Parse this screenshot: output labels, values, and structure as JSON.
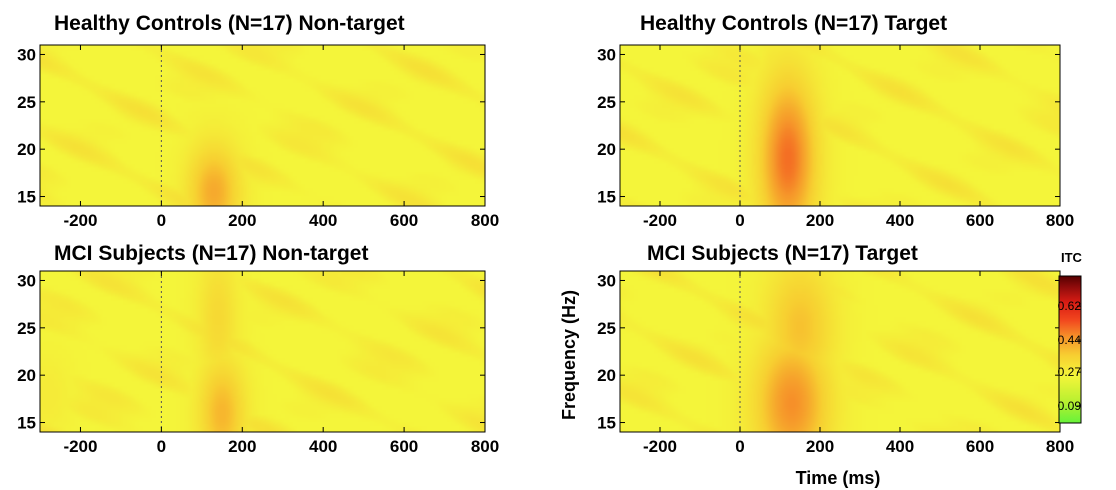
{
  "chart_data": [
    {
      "type": "heatmap",
      "title": "Healthy Controls (N=17) Non-target",
      "x_range": [
        -300,
        800
      ],
      "y_range": [
        14,
        31
      ],
      "x_ticks": [
        -200,
        0,
        200,
        400,
        600,
        800
      ],
      "y_ticks": [
        15,
        20,
        25,
        30
      ],
      "xlabel": "",
      "ylabel": "",
      "blobs": [
        {
          "time_ms": 130,
          "freq_hz": 15.5,
          "itc": 0.42,
          "sigma_ms": 45,
          "sigma_hz": 3.5
        },
        {
          "time_ms": 100,
          "freq_hz": 26,
          "itc": 0.22,
          "sigma_ms": 30,
          "sigma_hz": 2.5
        }
      ]
    },
    {
      "type": "heatmap",
      "title": "Healthy Controls (N=17) Target",
      "x_range": [
        -300,
        800
      ],
      "y_range": [
        14,
        31
      ],
      "x_ticks": [
        -200,
        0,
        200,
        400,
        600,
        800
      ],
      "y_ticks": [
        15,
        20,
        25,
        30
      ],
      "xlabel": "",
      "ylabel": "",
      "blobs": [
        {
          "time_ms": 120,
          "freq_hz": 19,
          "itc": 0.5,
          "sigma_ms": 50,
          "sigma_hz": 6
        },
        {
          "time_ms": 90,
          "freq_hz": 28,
          "itc": 0.3,
          "sigma_ms": 30,
          "sigma_hz": 3
        }
      ]
    },
    {
      "type": "heatmap",
      "title": "MCI Subjects (N=17) Non-target",
      "x_range": [
        -300,
        800
      ],
      "y_range": [
        14,
        31
      ],
      "x_ticks": [
        -200,
        0,
        200,
        400,
        600,
        800
      ],
      "y_ticks": [
        15,
        20,
        25,
        30
      ],
      "xlabel": "",
      "ylabel": "",
      "blobs": [
        {
          "time_ms": 150,
          "freq_hz": 16,
          "itc": 0.4,
          "sigma_ms": 40,
          "sigma_hz": 4
        },
        {
          "time_ms": 140,
          "freq_hz": 26,
          "itc": 0.33,
          "sigma_ms": 35,
          "sigma_hz": 5
        },
        {
          "time_ms": -280,
          "freq_hz": 18,
          "itc": 0.28,
          "sigma_ms": 40,
          "sigma_hz": 3
        }
      ]
    },
    {
      "type": "heatmap",
      "title": "MCI Subjects (N=17) Target",
      "x_range": [
        -300,
        800
      ],
      "y_range": [
        14,
        31
      ],
      "x_ticks": [
        -200,
        0,
        200,
        400,
        600,
        800
      ],
      "y_ticks": [
        15,
        20,
        25,
        30
      ],
      "xlabel": "Time (ms)",
      "ylabel": "Frequency (Hz)",
      "blobs": [
        {
          "time_ms": 130,
          "freq_hz": 17,
          "itc": 0.46,
          "sigma_ms": 65,
          "sigma_hz": 5
        },
        {
          "time_ms": 150,
          "freq_hz": 25,
          "itc": 0.38,
          "sigma_ms": 60,
          "sigma_hz": 5
        }
      ]
    }
  ],
  "colorbar": {
    "label": "ITC",
    "ticks": [
      "0.62",
      "0.44",
      "0.27",
      "0.09"
    ],
    "tick_values": [
      0.62,
      0.44,
      0.27,
      0.09
    ],
    "range": [
      0.0,
      0.78
    ],
    "colors": [
      "#66f23a",
      "#b6f030",
      "#f4f53a",
      "#f7cf31",
      "#f6962a",
      "#f2471e",
      "#d91c14",
      "#8c0b0b",
      "#550000"
    ]
  }
}
